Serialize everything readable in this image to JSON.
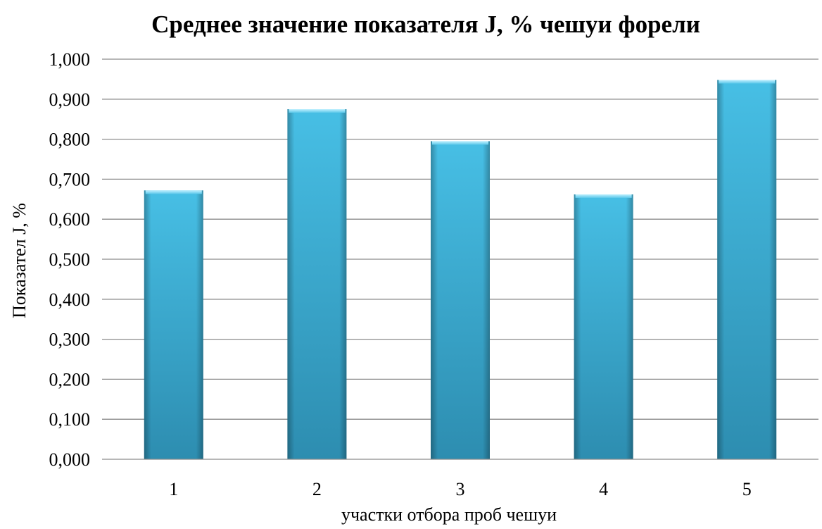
{
  "chart_data": {
    "type": "bar",
    "title": "Среднее значение показателя J, % чешуи форели",
    "xlabel": "участки отбора проб чешуи",
    "ylabel": "Показател J, %",
    "categories": [
      "1",
      "2",
      "3",
      "4",
      "5"
    ],
    "values": [
      0.672,
      0.875,
      0.795,
      0.662,
      0.948
    ],
    "ylim": [
      0,
      1
    ],
    "yticks": [
      "0,000",
      "0,100",
      "0,200",
      "0,300",
      "0,400",
      "0,500",
      "0,600",
      "0,700",
      "0,800",
      "0,900",
      "1,000"
    ],
    "grid": true,
    "legend": "none",
    "bar_color": "#3aaed6",
    "bar_color_dark": "#2a8fb0",
    "bar_color_light": "#62cbee"
  }
}
